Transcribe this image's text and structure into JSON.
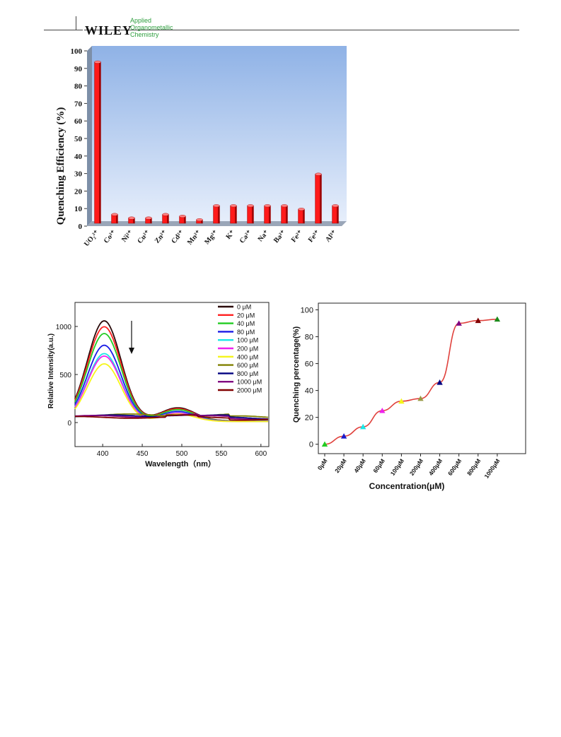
{
  "header": {
    "logo": "WILEY",
    "journal_line1": "Applied",
    "journal_line2": "Organometallic",
    "journal_line3": "Chemistry"
  },
  "colors": {
    "bar_red": "#ff1a1a",
    "plot_bg_top": "#8fb2e6",
    "plot_bg_bottom": "#e6eefb",
    "line_red": "#e0413c"
  },
  "chart_data": [
    {
      "type": "bar",
      "ylabel": "Quenching Efficiency (%)",
      "xlabel": "",
      "ylim": [
        0,
        100
      ],
      "yticks": [
        0,
        10,
        20,
        30,
        40,
        50,
        60,
        70,
        80,
        90,
        100
      ],
      "categories": [
        "UO₂²⁺",
        "Co²⁺",
        "Ni²⁺",
        "Cu²⁺",
        "Zn²⁺",
        "Cd²⁺",
        "Mn²⁺",
        "Mg²⁺",
        "K⁺",
        "Ca²⁺",
        "Na⁺",
        "Ba²⁺",
        "Fe²⁺",
        "Fe³⁺",
        "Al³⁺"
      ],
      "values": [
        92,
        5,
        3,
        3,
        5,
        4,
        2,
        10,
        10,
        10,
        10,
        10,
        8,
        28,
        10
      ],
      "grid": false,
      "style": "3d"
    },
    {
      "type": "line",
      "xlabel": "Wavelength（nm）",
      "ylabel": "Relative Intensity(a.u.)",
      "xlim": [
        365,
        610
      ],
      "ylim": [
        -250,
        1250
      ],
      "xticks": [
        400,
        450,
        500,
        550,
        600
      ],
      "yticks": [
        0,
        500,
        1000
      ],
      "legend_position": "top-right",
      "annotation": "arrow indicating decreasing intensity",
      "series": [
        {
          "name": "0 μM",
          "color": "#2a0a0a",
          "peak": 1040
        },
        {
          "name": "20 μM",
          "color": "#ff2020",
          "peak": 980
        },
        {
          "name": "40 μM",
          "color": "#22cc22",
          "peak": 910
        },
        {
          "name": "80 μM",
          "color": "#1a1ae6",
          "peak": 790
        },
        {
          "name": "100 μM",
          "color": "#1ae6e6",
          "peak": 705
        },
        {
          "name": "200 μM",
          "color": "#ee22ee",
          "peak": 680
        },
        {
          "name": "400 μM",
          "color": "#f5f51a",
          "peak": 600
        },
        {
          "name": "600 μM",
          "color": "#808000",
          "peak": 85
        },
        {
          "name": "800 μM",
          "color": "#000080",
          "peak": 75
        },
        {
          "name": "1000 μM",
          "color": "#800080",
          "peak": 70
        },
        {
          "name": "2000 μM",
          "color": "#800000",
          "peak": 60
        }
      ]
    },
    {
      "type": "line",
      "xlabel": "Concentration(μM)",
      "ylabel": "Quenching percentage(%)",
      "ylim": [
        -7,
        105
      ],
      "yticks": [
        0,
        20,
        40,
        60,
        80,
        100
      ],
      "categories": [
        "0μM",
        "20μM",
        "40μM",
        "60μM",
        "100μM",
        "200μM",
        "400μM",
        "600μM",
        "800μM",
        "1000μM"
      ],
      "values": [
        0,
        6,
        13,
        25,
        32,
        34,
        46,
        90,
        92,
        93
      ],
      "marker_colors": [
        "#22cc22",
        "#1a1acc",
        "#1ae6e6",
        "#ee22ee",
        "#f5f51a",
        "#999944",
        "#000080",
        "#800080",
        "#800000",
        "#1a8a1a"
      ],
      "grid": false
    }
  ]
}
